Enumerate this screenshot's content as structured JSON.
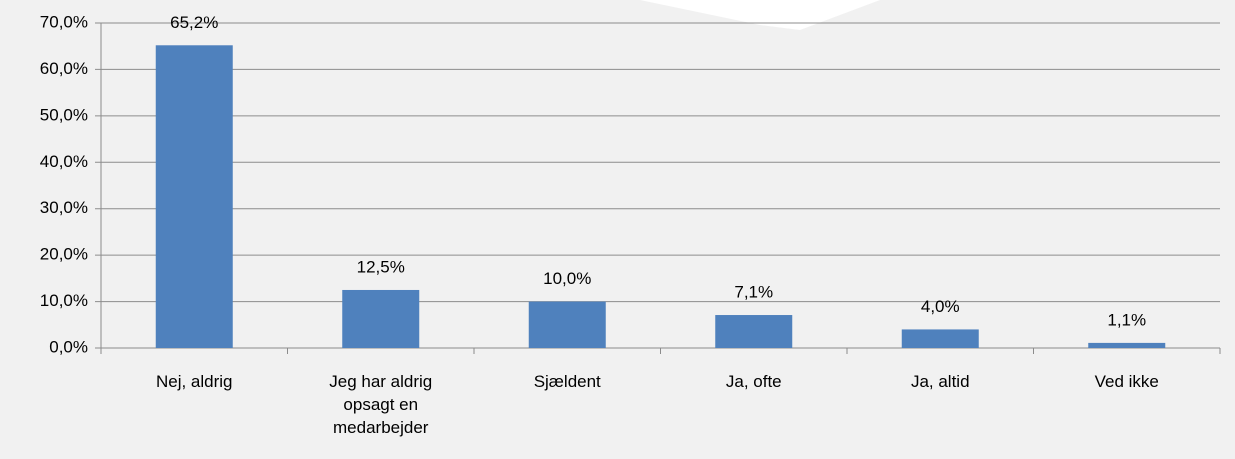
{
  "chart_data": {
    "type": "bar",
    "categories": [
      "Nej, aldrig",
      "Jeg har aldrig opsagt en medarbejder",
      "Sjældent",
      "Ja, ofte",
      "Ja, altid",
      "Ved ikke"
    ],
    "values": [
      65.2,
      12.5,
      10.0,
      7.1,
      4.0,
      1.1
    ],
    "value_labels": [
      "65,2%",
      "12,5%",
      "10,0%",
      "7,1%",
      "4,0%",
      "1,1%"
    ],
    "color": "#4f81bd",
    "ylim": [
      0,
      70
    ],
    "yticks": [
      {
        "value": 0,
        "label": "0,0%"
      },
      {
        "value": 10,
        "label": "10,0%"
      },
      {
        "value": 20,
        "label": "20,0%"
      },
      {
        "value": 30,
        "label": "30,0%"
      },
      {
        "value": 40,
        "label": "40,0%"
      },
      {
        "value": 50,
        "label": "50,0%"
      },
      {
        "value": 60,
        "label": "60,0%"
      },
      {
        "value": 70,
        "label": "70,0%"
      }
    ],
    "grid": true
  }
}
